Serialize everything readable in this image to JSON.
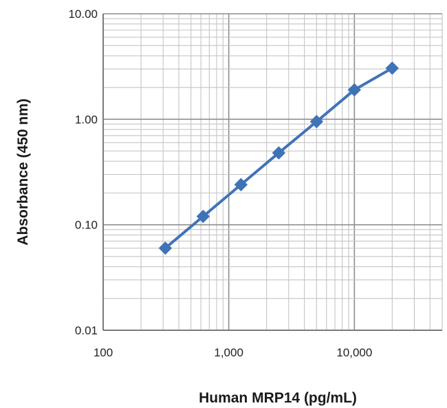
{
  "chart_data": {
    "type": "line",
    "title": "",
    "xlabel": "Human MRP14 (pg/mL)",
    "ylabel": "Absorbance (450 nm)",
    "x_scale": "log",
    "y_scale": "log",
    "xlim": [
      100,
      50000
    ],
    "ylim": [
      0.01,
      10
    ],
    "x_ticks": [
      {
        "value": 100,
        "label": "100"
      },
      {
        "value": 1000,
        "label": "1,000"
      },
      {
        "value": 10000,
        "label": "10,000"
      }
    ],
    "y_ticks": [
      {
        "value": 0.01,
        "label": "0.01"
      },
      {
        "value": 0.1,
        "label": "0.10"
      },
      {
        "value": 1,
        "label": "1.00"
      },
      {
        "value": 10,
        "label": "10.00"
      }
    ],
    "grid": true,
    "legend": "none",
    "series": [
      {
        "color": "#3f73b8",
        "marker": "diamond",
        "points": [
          {
            "x": 312.5,
            "y": 0.06
          },
          {
            "x": 625,
            "y": 0.12
          },
          {
            "x": 1250,
            "y": 0.24
          },
          {
            "x": 2500,
            "y": 0.48
          },
          {
            "x": 5000,
            "y": 0.95
          },
          {
            "x": 10000,
            "y": 1.9
          },
          {
            "x": 20000,
            "y": 3.05
          }
        ]
      }
    ]
  }
}
